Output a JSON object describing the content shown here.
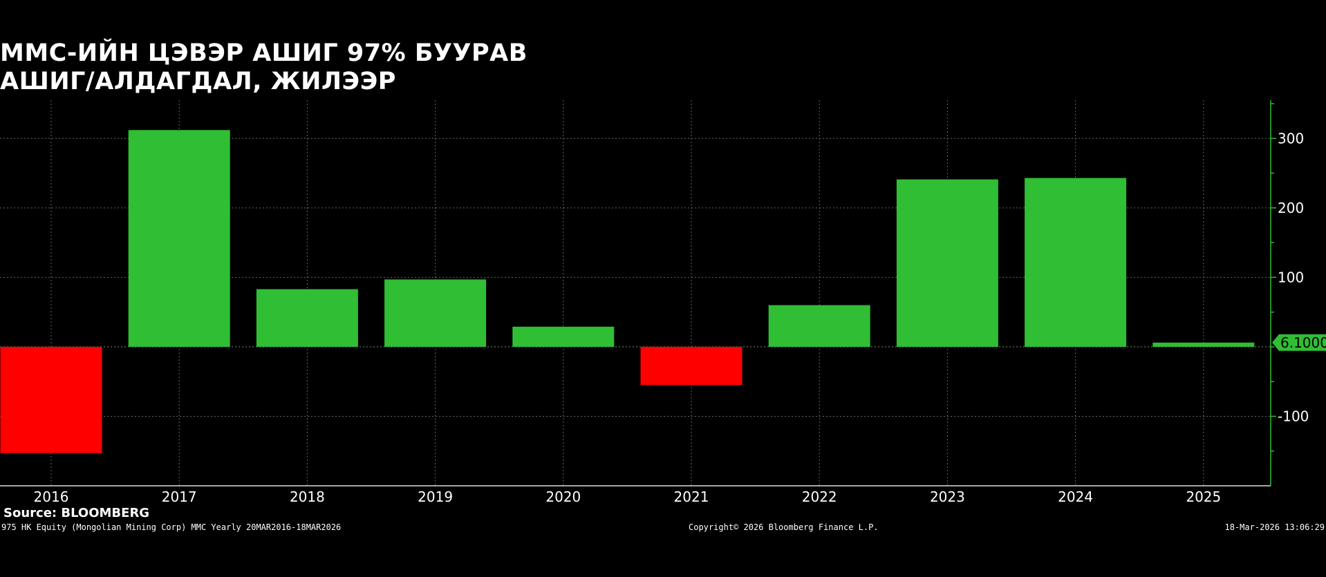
{
  "chart_data": {
    "type": "bar",
    "title": "ММС-ИЙН ЦЭВЭР АШИГ 97% БУУРАВ",
    "subtitle": "АШИГ/АЛДАГДАЛ, ЖИЛЭЭР",
    "categories": [
      "2016",
      "2017",
      "2018",
      "2019",
      "2020",
      "2021",
      "2022",
      "2023",
      "2024",
      "2025"
    ],
    "values": [
      -153,
      312,
      83,
      97,
      29,
      -55,
      60,
      241,
      243,
      6.1
    ],
    "ylim": [
      -200,
      355
    ],
    "yticks": [
      -100,
      100,
      200,
      300
    ],
    "ytick_labels": [
      "-100",
      "100",
      "200",
      "300"
    ],
    "last_value_label": "6.1000",
    "grid": true,
    "colors": {
      "positive": "#2fbe34",
      "negative": "#ff0000",
      "axis": "#2fbe34",
      "grid": "#666666"
    }
  },
  "source": "Source: BLOOMBERG",
  "footer": {
    "left": "975 HK Equity (Mongolian Mining Corp) MMC Yearly 20MAR2016-18MAR2026",
    "center": "Copyright© 2026 Bloomberg Finance L.P.",
    "right": "18-Mar-2026 13:06:29"
  }
}
